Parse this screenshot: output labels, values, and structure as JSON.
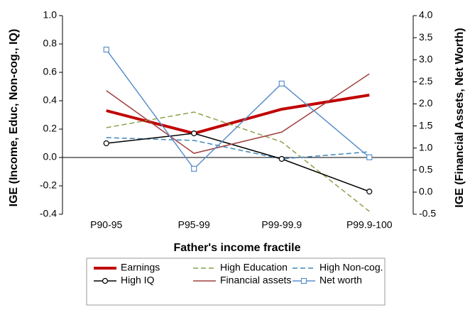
{
  "chart_data": {
    "type": "line",
    "x_label": "Father's income fractile",
    "y_label": "IGE (Income, Educ, Non-cog., IQ)",
    "y2_label": "IGE (Financial Assets, Net Worth)",
    "categories": [
      "P90-95",
      "P95-99",
      "P99-99.9",
      "P99.9-100"
    ],
    "ylim": [
      -0.4,
      1.0
    ],
    "yticks": [
      -0.4,
      -0.2,
      {
        "value": 0,
        "label": "0.0"
      },
      0.2,
      0.4,
      0.6,
      0.8,
      {
        "value": 1,
        "label": "1.0"
      }
    ],
    "y2lim": [
      -0.5,
      4.0
    ],
    "y2ticks": [
      -0.5,
      {
        "value": 0,
        "label": "0.0"
      },
      0.5,
      {
        "value": 1,
        "label": "1.0"
      },
      1.5,
      {
        "value": 2,
        "label": "2.0"
      },
      2.5,
      {
        "value": 3,
        "label": "3.0"
      },
      3.5,
      {
        "value": 4,
        "label": "4.0"
      }
    ],
    "series": [
      {
        "name": "Earnings",
        "color": "#c00000",
        "width": 4,
        "style": "solid",
        "values": [
          0.33,
          0.17,
          0.34,
          0.44
        ]
      },
      {
        "name": "High Education",
        "color": "#8aa34a",
        "width": 1.5,
        "style": "dashed",
        "values": [
          0.21,
          0.32,
          0.11,
          -0.38
        ]
      },
      {
        "name": "High Non-cog.",
        "color": "#3f86b8",
        "width": 1.5,
        "style": "dashed",
        "values": [
          0.14,
          0.12,
          -0.01,
          0.04
        ]
      },
      {
        "name": "High IQ",
        "color": "#000000",
        "width": 1.5,
        "style": "solid",
        "marker": "circle",
        "values": [
          0.1,
          0.17,
          -0.01,
          -0.24
        ]
      },
      {
        "name": "Financial assets",
        "color": "#a0413f",
        "width": 1.5,
        "style": "solid",
        "axis": "y2",
        "values": [
          2.3,
          0.88,
          1.36,
          2.68
        ]
      },
      {
        "name": "Net worth",
        "color": "#5b8fcc",
        "width": 1.5,
        "style": "solid",
        "marker": "square",
        "axis": "y2",
        "values": [
          3.23,
          0.53,
          2.46,
          0.79
        ]
      }
    ]
  }
}
